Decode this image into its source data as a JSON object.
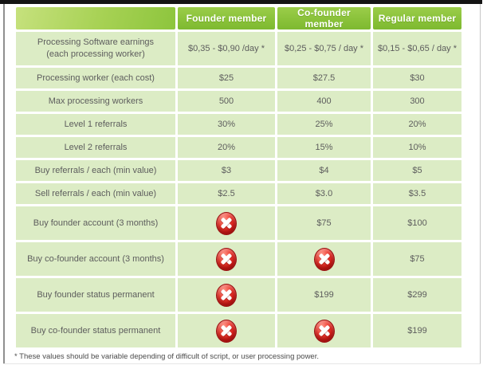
{
  "page": {
    "footnote": "* These values should be variable depending of difficult of script, or user processing power."
  },
  "icons": {
    "unavailable": "red-cross-icon"
  },
  "colors": {
    "header_green": "#8ac23a",
    "corner_green_light": "#c6e17d",
    "cell_green": "#dcecc5",
    "cross_red": "#d6201c",
    "text_gray": "#5d5d5d",
    "header_text": "#ffffff"
  },
  "table": {
    "columns": [
      "",
      "Founder member",
      "Co-founder member",
      "Regular member"
    ],
    "rows": [
      {
        "label": "Processing Software earnings\n(each processing worker)",
        "values": [
          "$0,35 - $0,90 /day *",
          "$0,25 - $0,75 / day *",
          "$0,15 - $0,65 / day *"
        ]
      },
      {
        "label": "Processing worker (each cost)",
        "values": [
          "$25",
          "$27.5",
          "$30"
        ]
      },
      {
        "label": "Max processing workers",
        "values": [
          "500",
          "400",
          "300"
        ]
      },
      {
        "label": "Level 1 referrals",
        "values": [
          "30%",
          "25%",
          "20%"
        ]
      },
      {
        "label": "Level 2 referrals",
        "values": [
          "20%",
          "15%",
          "10%"
        ]
      },
      {
        "label": "Buy referrals / each (min value)",
        "values": [
          "$3",
          "$4",
          "$5"
        ]
      },
      {
        "label": "Sell referrals / each (min value)",
        "values": [
          "$2.5",
          "$3.0",
          "$3.5"
        ]
      },
      {
        "label": "Buy founder account (3 months)",
        "values": [
          null,
          "$75",
          "$100"
        ]
      },
      {
        "label": "Buy co-founder account (3 months)",
        "values": [
          null,
          null,
          "$75"
        ]
      },
      {
        "label": "Buy founder status permanent",
        "values": [
          null,
          "$199",
          "$299"
        ]
      },
      {
        "label": "Buy co-founder status permanent",
        "values": [
          null,
          null,
          "$199"
        ]
      }
    ]
  }
}
